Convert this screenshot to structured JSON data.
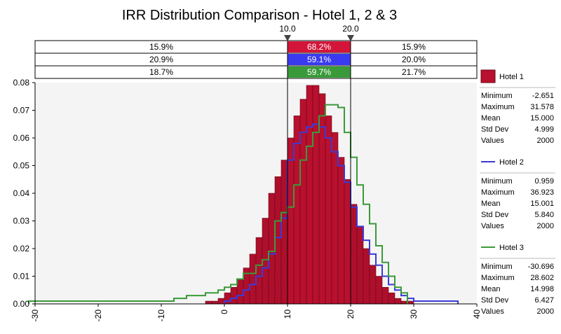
{
  "chart_data": {
    "type": "histogram",
    "title": "IRR Distribution Comparison - Hotel 1, 2 & 3",
    "xlim": [
      -30,
      40
    ],
    "ylim": [
      0,
      0.08
    ],
    "x_ticks": [
      -30,
      -20,
      -10,
      0,
      10,
      20,
      30,
      40
    ],
    "y_ticks": [
      0.0,
      0.01,
      0.02,
      0.03,
      0.04,
      0.05,
      0.06,
      0.07,
      0.08
    ],
    "bin_width": 1,
    "delimiters": {
      "left": "10.0",
      "right": "20.0",
      "left_value": 10,
      "right_value": 20
    },
    "bands": [
      {
        "series": "Hotel 1",
        "left": "15.9%",
        "mid": "68.2%",
        "right": "15.9%",
        "color": "#d4153a"
      },
      {
        "series": "Hotel 2",
        "left": "20.9%",
        "mid": "59.1%",
        "right": "20.0%",
        "color": "#3a3af0"
      },
      {
        "series": "Hotel 3",
        "left": "18.7%",
        "mid": "59.7%",
        "right": "21.7%",
        "color": "#3a9a3a"
      }
    ],
    "series": [
      {
        "name": "Hotel 1",
        "style": "bars",
        "color": "#b8102e",
        "x_start": -3,
        "values": [
          0.001,
          0.001,
          0.002,
          0.004,
          0.006,
          0.009,
          0.013,
          0.018,
          0.024,
          0.031,
          0.04,
          0.046,
          0.052,
          0.06,
          0.068,
          0.074,
          0.079,
          0.079,
          0.076,
          0.068,
          0.062,
          0.053,
          0.045,
          0.036,
          0.028,
          0.02,
          0.014,
          0.01,
          0.006,
          0.004,
          0.002,
          0.001,
          0.001
        ],
        "stats": {
          "Minimum": "-2.651",
          "Maximum": "31.578",
          "Mean": "15.000",
          "Std Dev": "4.999",
          "Values": "2000"
        }
      },
      {
        "name": "Hotel 2",
        "style": "step",
        "color": "#3a3ad8",
        "x_start": 0,
        "values": [
          0.001,
          0.002,
          0.003,
          0.005,
          0.007,
          0.01,
          0.013,
          0.018,
          0.024,
          0.031,
          0.052,
          0.058,
          0.062,
          0.064,
          0.065,
          0.064,
          0.06,
          0.055,
          0.05,
          0.044,
          0.035,
          0.028,
          0.023,
          0.018,
          0.014,
          0.01,
          0.007,
          0.005,
          0.003,
          0.002,
          0.001,
          0.001,
          0.001,
          0.001,
          0.001,
          0.001,
          0.001
        ],
        "stats": {
          "Minimum": "0.959",
          "Maximum": "36.923",
          "Mean": "15.001",
          "Std Dev": "5.840",
          "Values": "2000"
        }
      },
      {
        "name": "Hotel 3",
        "style": "step",
        "color": "#3a9a3a",
        "x_start": -31,
        "values": [
          0.001,
          0.001,
          0.001,
          0.001,
          0.001,
          0.001,
          0.001,
          0.001,
          0.001,
          0.001,
          0.001,
          0.001,
          0.001,
          0.001,
          0.001,
          0.001,
          0.001,
          0.001,
          0.001,
          0.001,
          0.001,
          0.001,
          0.001,
          0.002,
          0.002,
          0.003,
          0.003,
          0.003,
          0.004,
          0.004,
          0.005,
          0.006,
          0.007,
          0.009,
          0.011,
          0.011,
          0.014,
          0.016,
          0.019,
          0.03,
          0.033,
          0.035,
          0.043,
          0.052,
          0.057,
          0.062,
          0.068,
          0.072,
          0.072,
          0.071,
          0.062,
          0.053,
          0.043,
          0.036,
          0.029,
          0.021,
          0.015,
          0.01,
          0.006,
          0.004
        ],
        "stats": {
          "Minimum": "-30.696",
          "Maximum": "28.602",
          "Mean": "14.998",
          "Std Dev": "6.427",
          "Values": "2000"
        }
      }
    ],
    "stat_labels": [
      "Minimum",
      "Maximum",
      "Mean",
      "Std Dev",
      "Values"
    ]
  }
}
